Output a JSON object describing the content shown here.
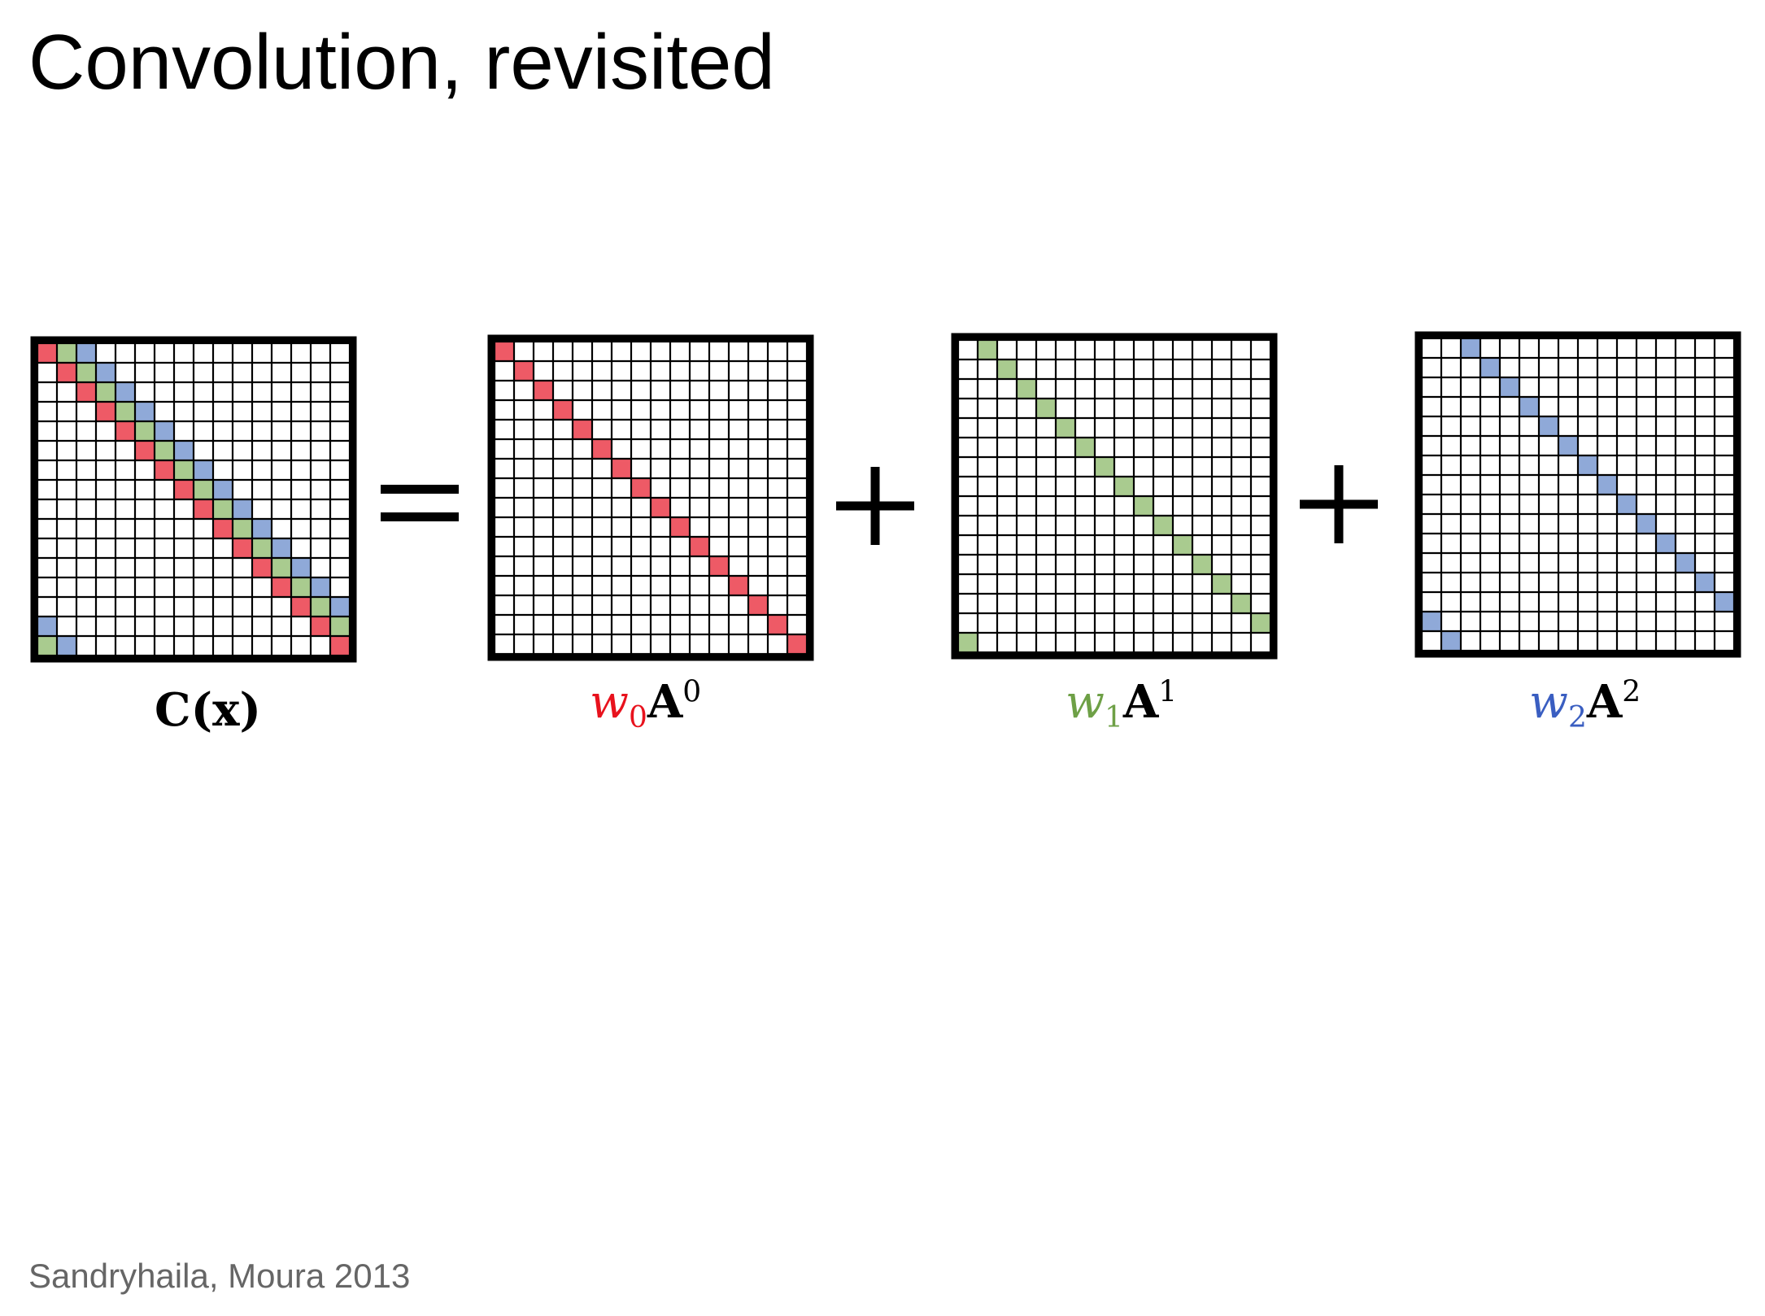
{
  "slide": {
    "title": "Convolution, revisited",
    "citation": "Sandryhaila, Moura 2013"
  },
  "colors": {
    "red": "#ee5a66",
    "green": "#a9cb8f",
    "blue": "#8fa9d8",
    "red_text": "#e8121d",
    "green_text": "#6ea046",
    "blue_text": "#3a5ec1"
  },
  "grid_size": 16,
  "operators": [
    "=",
    "+",
    "+"
  ],
  "matrices": [
    {
      "id": "C",
      "label_text": "C(x)",
      "diagonals": [
        {
          "offset": 0,
          "color": "red"
        },
        {
          "offset": 1,
          "color": "green"
        },
        {
          "offset": 2,
          "color": "blue"
        }
      ]
    },
    {
      "id": "A0",
      "label_weight": "w",
      "label_sub": "0",
      "label_matrix": "A",
      "label_sup": "0",
      "label_color": "red_text",
      "diagonals": [
        {
          "offset": 0,
          "color": "red"
        }
      ]
    },
    {
      "id": "A1",
      "label_weight": "w",
      "label_sub": "1",
      "label_matrix": "A",
      "label_sup": "1",
      "label_color": "green_text",
      "diagonals": [
        {
          "offset": 1,
          "color": "green"
        }
      ]
    },
    {
      "id": "A2",
      "label_weight": "w",
      "label_sub": "2",
      "label_matrix": "A",
      "label_sup": "2",
      "label_color": "blue_text",
      "diagonals": [
        {
          "offset": 2,
          "color": "blue"
        }
      ]
    }
  ]
}
